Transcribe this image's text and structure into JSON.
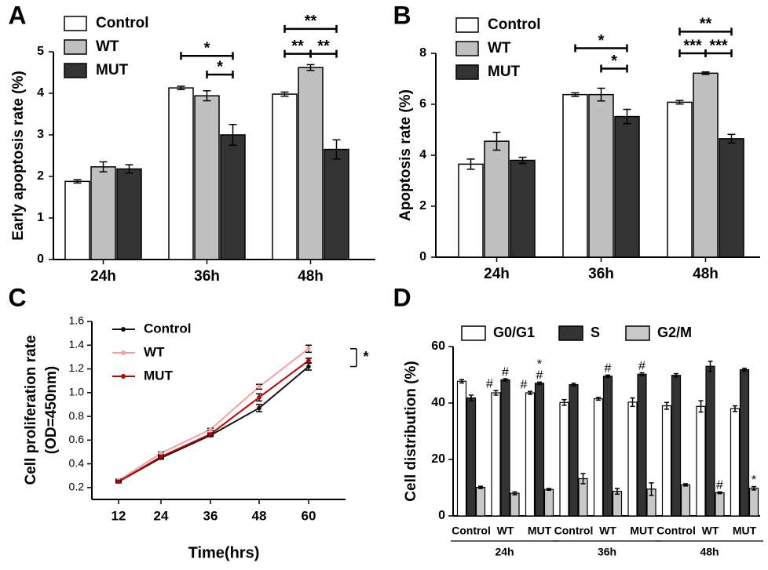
{
  "chart_data": [
    {
      "panel": "A",
      "type": "bar",
      "ylabel": "Early apoptosis rate (%)",
      "ylim": [
        0,
        5
      ],
      "yticks": [
        0,
        1,
        2,
        3,
        4,
        5
      ],
      "categories": [
        "24h",
        "36h",
        "48h"
      ],
      "series": [
        {
          "name": "Control",
          "values": [
            1.88,
            4.13,
            3.98
          ],
          "errors": [
            0.04,
            0.04,
            0.05
          ]
        },
        {
          "name": "WT",
          "values": [
            2.23,
            3.94,
            4.62
          ],
          "errors": [
            0.12,
            0.12,
            0.07
          ]
        },
        {
          "name": "MUT",
          "values": [
            2.18,
            3.0,
            2.65
          ],
          "errors": [
            0.1,
            0.25,
            0.23
          ]
        }
      ],
      "significance": [
        {
          "group": 1,
          "from": 0,
          "to": 2,
          "value": 4.9,
          "label": "*"
        },
        {
          "group": 1,
          "from": 1,
          "to": 2,
          "value": 4.45,
          "label": "*"
        },
        {
          "group": 2,
          "from": 0,
          "to": 2,
          "value": 5.55,
          "label": "**"
        },
        {
          "group": 2,
          "from": 0,
          "to": 1,
          "value": 4.95,
          "label": "**"
        },
        {
          "group": 2,
          "from": 1,
          "to": 2,
          "value": 4.95,
          "label": "**"
        }
      ]
    },
    {
      "panel": "B",
      "type": "bar",
      "ylabel": "Apoptosis rate (%)",
      "ylim": [
        0,
        8
      ],
      "yticks": [
        0,
        2,
        4,
        6,
        8
      ],
      "categories": [
        "24h",
        "36h",
        "48h"
      ],
      "series": [
        {
          "name": "Control",
          "values": [
            3.65,
            6.38,
            6.08
          ],
          "errors": [
            0.2,
            0.07,
            0.07
          ]
        },
        {
          "name": "WT",
          "values": [
            4.55,
            6.38,
            7.22
          ],
          "errors": [
            0.35,
            0.25,
            0.05
          ]
        },
        {
          "name": "MUT",
          "values": [
            3.8,
            5.52,
            4.65
          ],
          "errors": [
            0.12,
            0.28,
            0.17
          ]
        }
      ],
      "significance": [
        {
          "group": 1,
          "from": 0,
          "to": 2,
          "value": 8.2,
          "label": "*"
        },
        {
          "group": 1,
          "from": 1,
          "to": 2,
          "value": 7.4,
          "label": "*"
        },
        {
          "group": 2,
          "from": 0,
          "to": 2,
          "value": 8.85,
          "label": "**"
        },
        {
          "group": 2,
          "from": 0,
          "to": 1,
          "value": 8.0,
          "label": "***"
        },
        {
          "group": 2,
          "from": 1,
          "to": 2,
          "value": 8.0,
          "label": "***"
        }
      ]
    },
    {
      "panel": "C",
      "type": "line",
      "xlabel": "Time(hrs)",
      "ylabel": "Cell proliferation rate (OD=450nm)",
      "ylim": [
        0.1,
        1.6
      ],
      "yticks": [
        "0.2",
        "0.4",
        "0.6",
        "0.8",
        "1.0",
        "1.2",
        "1.4",
        "1.6"
      ],
      "x": [
        12,
        24,
        36,
        48,
        60
      ],
      "series": [
        {
          "name": "Control",
          "color": "#111111",
          "values": [
            0.25,
            0.45,
            0.64,
            0.87,
            1.22
          ],
          "errors": [
            0.01,
            0.01,
            0.01,
            0.03,
            0.03
          ]
        },
        {
          "name": "WT",
          "color": "#f4a0a0",
          "values": [
            0.26,
            0.49,
            0.69,
            1.05,
            1.37
          ],
          "errors": [
            0.01,
            0.01,
            0.01,
            0.02,
            0.03
          ]
        },
        {
          "name": "MUT",
          "color": "#c00000",
          "values": [
            0.25,
            0.46,
            0.65,
            0.96,
            1.27
          ],
          "errors": [
            0.01,
            0.01,
            0.01,
            0.03,
            0.02
          ]
        }
      ],
      "annotation": "*"
    },
    {
      "panel": "D",
      "type": "bar",
      "ylabel": "Cell distribution (%)",
      "ylim": [
        0,
        60
      ],
      "yticks": [
        0,
        20,
        40,
        60
      ],
      "categories": [
        "Control",
        "WT",
        "MUT",
        "Control",
        "WT",
        "MUT",
        "Control",
        "WT",
        "MUT"
      ],
      "time_groups": [
        "24h",
        "36h",
        "48h"
      ],
      "series": [
        {
          "name": "G0/G1",
          "values": [
            47.7,
            43.6,
            43.6,
            40.2,
            41.5,
            40.3,
            39.0,
            38.8,
            38.0
          ],
          "errors": [
            0.6,
            0.8,
            0.5,
            1.0,
            0.5,
            1.5,
            1.2,
            2.0,
            1.0
          ]
        },
        {
          "name": "S",
          "values": [
            41.8,
            48.2,
            47.0,
            46.5,
            49.5,
            50.2,
            49.8,
            53.0,
            51.8
          ],
          "errors": [
            1.0,
            0.4,
            0.4,
            0.5,
            0.4,
            0.5,
            0.6,
            1.8,
            0.5
          ]
        },
        {
          "name": "G2/M",
          "values": [
            10.1,
            8.0,
            9.4,
            13.2,
            8.7,
            9.5,
            11.0,
            8.2,
            9.8
          ],
          "errors": [
            0.4,
            0.5,
            0.3,
            1.8,
            1.0,
            2.2,
            0.4,
            0.3,
            0.6
          ]
        }
      ],
      "marks": [
        {
          "cat": 1,
          "series": 0,
          "label": "#"
        },
        {
          "cat": 1,
          "series": 1,
          "label": "#"
        },
        {
          "cat": 2,
          "series": 0,
          "label": "#"
        },
        {
          "cat": 2,
          "series": 1,
          "label": "#"
        },
        {
          "cat": 2,
          "series": 1,
          "label": "*"
        },
        {
          "cat": 4,
          "series": 1,
          "label": "#"
        },
        {
          "cat": 5,
          "series": 1,
          "label": "#"
        },
        {
          "cat": 7,
          "series": 2,
          "label": "#"
        },
        {
          "cat": 8,
          "series": 2,
          "label": "*"
        }
      ]
    }
  ],
  "panel_labels": [
    "A",
    "B",
    "C",
    "D"
  ],
  "colors": {
    "control": "#ffffff",
    "wt": "#c0c0c0",
    "mut": "#333333",
    "d_g0g1": "#ffffff",
    "d_s": "#333333",
    "d_g2m": "#c8c8c8"
  }
}
